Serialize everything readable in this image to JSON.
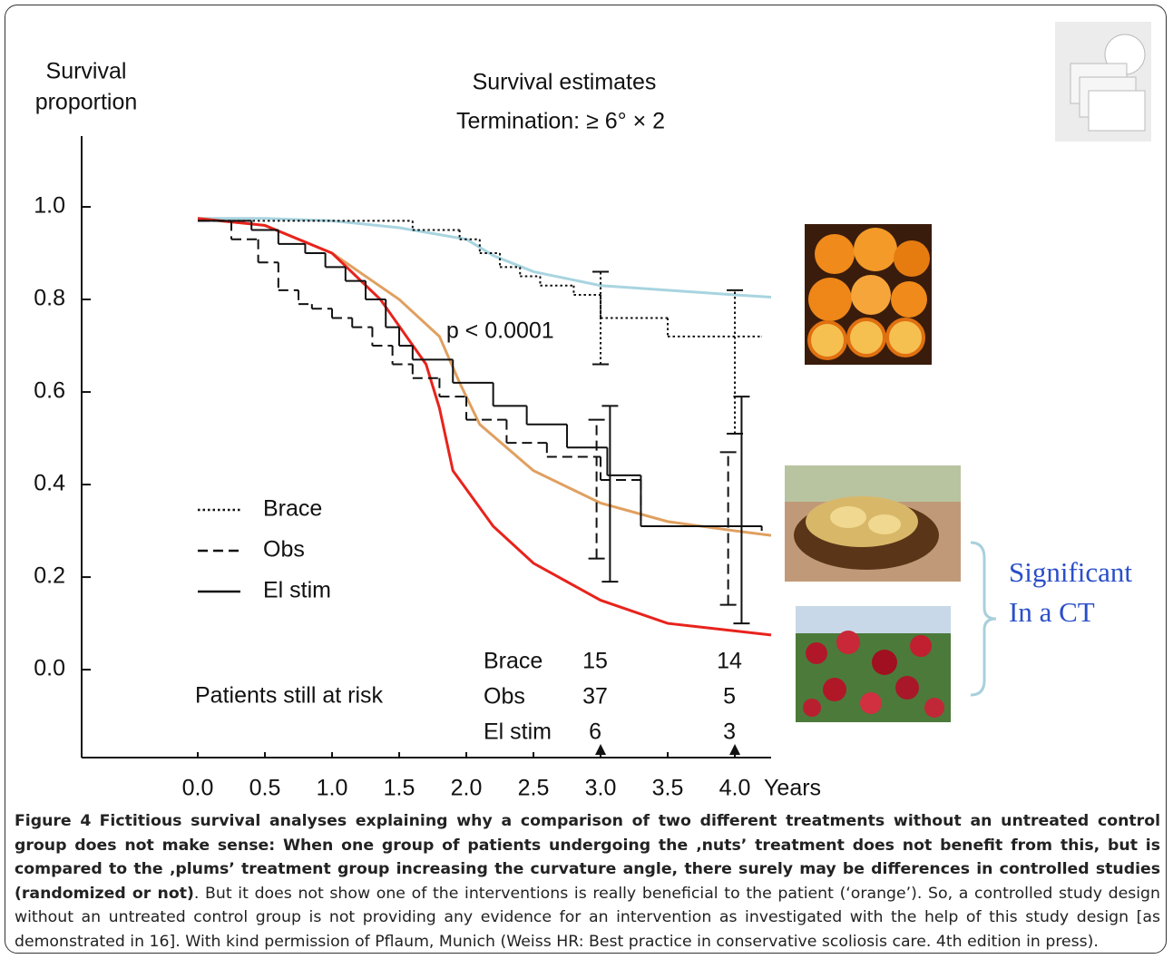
{
  "chart_data": {
    "type": "survival",
    "title": "Survival estimates",
    "subtitle": "Termination:  ≥  6° × 2",
    "ylabel": [
      "Survival",
      "proportion"
    ],
    "xlabel": "Years",
    "annotation": {
      "text": "p < 0.0001",
      "x": 1.85,
      "y": 0.73
    },
    "xlim": [
      -0.865,
      4.27
    ],
    "ylim": [
      -0.19,
      1.153
    ],
    "xticks": [
      {
        "value": 0,
        "label": "0.0"
      },
      0.5,
      {
        "value": 1,
        "label": "1.0"
      },
      1.5,
      {
        "value": 2,
        "label": "2.0"
      },
      2.5,
      {
        "value": 3,
        "label": "3.0"
      },
      3.5,
      {
        "value": 4,
        "label": "4.0"
      }
    ],
    "yticks": [
      {
        "value": 0,
        "label": "0.0"
      },
      0.2,
      0.4,
      0.6,
      0.8,
      {
        "value": 1,
        "label": "1.0"
      }
    ],
    "legend": "left",
    "series": [
      {
        "name": "Brace",
        "color": "#111111",
        "dash": "dotted",
        "x": [
          0,
          1.6,
          1.95,
          2.1,
          2.25,
          2.4,
          2.55,
          2.8,
          3.0,
          3.5,
          4.2
        ],
        "values": [
          0.97,
          0.95,
          0.93,
          0.9,
          0.87,
          0.85,
          0.83,
          0.81,
          0.76,
          0.72,
          0.72
        ],
        "error_bars": [
          {
            "x": 3.0,
            "low": 0.66,
            "high": 0.86
          },
          {
            "x": 4.0,
            "low": 0.51,
            "high": 0.82
          }
        ],
        "at_risk": [
          15,
          14
        ]
      },
      {
        "name": "Obs",
        "color": "#111111",
        "dash": "dashed",
        "x": [
          0,
          0.25,
          0.45,
          0.6,
          0.75,
          0.85,
          1.0,
          1.15,
          1.3,
          1.45,
          1.6,
          1.8,
          2.0,
          2.3,
          2.6,
          3.0,
          3.3,
          4.2
        ],
        "values": [
          0.97,
          0.93,
          0.88,
          0.82,
          0.79,
          0.78,
          0.76,
          0.74,
          0.7,
          0.66,
          0.63,
          0.59,
          0.54,
          0.49,
          0.46,
          0.41,
          0.31,
          0.31
        ],
        "error_bars": [
          {
            "x": 2.97,
            "low": 0.24,
            "high": 0.54
          },
          {
            "x": 3.95,
            "low": 0.14,
            "high": 0.47
          }
        ],
        "at_risk": [
          37,
          5
        ]
      },
      {
        "name": "El stim",
        "color": "#111111",
        "dash": "solid",
        "x": [
          0,
          0.4,
          0.6,
          0.8,
          0.95,
          1.1,
          1.25,
          1.4,
          1.5,
          1.6,
          1.9,
          2.2,
          2.45,
          2.75,
          3.05,
          3.3,
          4.2
        ],
        "values": [
          0.97,
          0.95,
          0.92,
          0.9,
          0.87,
          0.84,
          0.8,
          0.74,
          0.7,
          0.67,
          0.62,
          0.57,
          0.53,
          0.48,
          0.42,
          0.31,
          0.3
        ],
        "error_bars": [
          {
            "x": 3.07,
            "low": 0.19,
            "high": 0.57
          },
          {
            "x": 4.05,
            "low": 0.1,
            "high": 0.59
          }
        ],
        "at_risk": [
          6,
          3
        ]
      }
    ],
    "fitted_curves": [
      {
        "color": "#a8d4e0",
        "x": [
          0,
          0.5,
          1,
          1.5,
          2,
          2.2,
          2.5,
          3,
          3.5,
          4,
          4.27
        ],
        "values": [
          0.975,
          0.975,
          0.97,
          0.955,
          0.93,
          0.895,
          0.86,
          0.83,
          0.82,
          0.81,
          0.805
        ]
      },
      {
        "color": "#e0a060",
        "x": [
          0,
          0.5,
          1,
          1.5,
          1.8,
          1.95,
          2.1,
          2.5,
          3,
          3.5,
          4,
          4.27
        ],
        "values": [
          0.975,
          0.96,
          0.9,
          0.8,
          0.72,
          0.62,
          0.53,
          0.43,
          0.36,
          0.32,
          0.3,
          0.29
        ]
      },
      {
        "color": "#e8231c",
        "x": [
          0,
          0.5,
          1,
          1.36,
          1.7,
          1.8,
          1.9,
          2.2,
          2.5,
          3,
          3.5,
          4.27
        ],
        "values": [
          0.975,
          0.96,
          0.9,
          0.8,
          0.66,
          0.565,
          0.43,
          0.31,
          0.23,
          0.15,
          0.1,
          0.075
        ]
      }
    ],
    "at_risk_label": "Patients still at risk",
    "at_risk_x": [
      3,
      4
    ]
  },
  "side_annotation": [
    "Significant",
    "In a CT"
  ],
  "caption": {
    "label": "Figure 4",
    "bold_text": "Fictitious survival analyses explaining why a comparison of two different treatments without an untreated control group does not make sense: When one group of patients undergoing the ‚nuts’ treatment does not benefit from this, but is compared to the ‚plums’ treatment group increasing the curvature angle, there surely may be differences in controlled studies (randomized or not)",
    "text": ". But it does not show one of the interventions is really beneficial to the patient (‘orange’). So, a controlled study design without an untreated control group is not providing any evidence for an intervention as investigated with the help of this study design [as demonstrated in 16]. With kind permission of Pflaum, Munich (Weiss HR: Best practice in conservative scoliosis care. 4th edition in press)."
  }
}
